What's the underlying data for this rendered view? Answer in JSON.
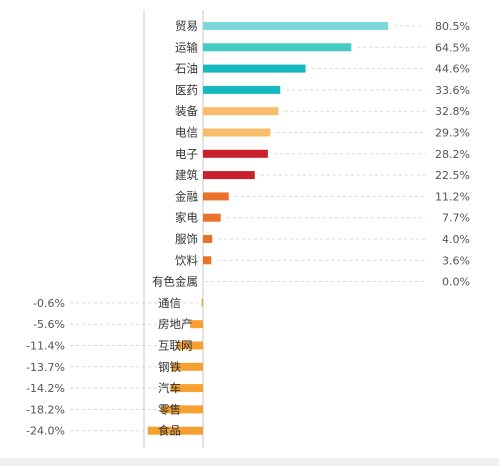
{
  "chart_data": {
    "type": "bar",
    "orientation": "horizontal",
    "unit": "%",
    "categories": [
      "贸易",
      "运输",
      "石油",
      "医药",
      "装备",
      "电信",
      "电子",
      "建筑",
      "金融",
      "家电",
      "服饰",
      "饮料",
      "有色金属",
      "通信",
      "房地产",
      "互联网",
      "钢铁",
      "汽车",
      "零售",
      "食品"
    ],
    "values": [
      80.5,
      64.5,
      44.6,
      33.6,
      32.8,
      29.3,
      28.2,
      22.5,
      11.2,
      7.7,
      4.0,
      3.6,
      0.0,
      -0.6,
      -5.6,
      -11.4,
      -13.7,
      -14.2,
      -18.2,
      -24.0
    ],
    "value_labels": [
      "80.5%",
      "64.5%",
      "44.6%",
      "33.6%",
      "32.8%",
      "29.3%",
      "28.2%",
      "22.5%",
      "11.2%",
      "7.7%",
      "4.0%",
      "3.6%",
      "0.0%",
      "-0.6%",
      "-5.6%",
      "-11.4%",
      "-13.7%",
      "-14.2%",
      "-18.2%",
      "-24.0%"
    ],
    "colors": [
      "#7fd8d8",
      "#45cbc6",
      "#17b8be",
      "#17b8be",
      "#f8bc6a",
      "#f8bc6a",
      "#c8202c",
      "#c8202c",
      "#e8722a",
      "#e8722a",
      "#e8722a",
      "#e8722a",
      "#e8722a",
      "#f5a030",
      "#f5a030",
      "#f5a030",
      "#f5a030",
      "#f5a030",
      "#f5a030",
      "#f5a030"
    ],
    "grid": "dashed horizontal guides to value labels"
  }
}
